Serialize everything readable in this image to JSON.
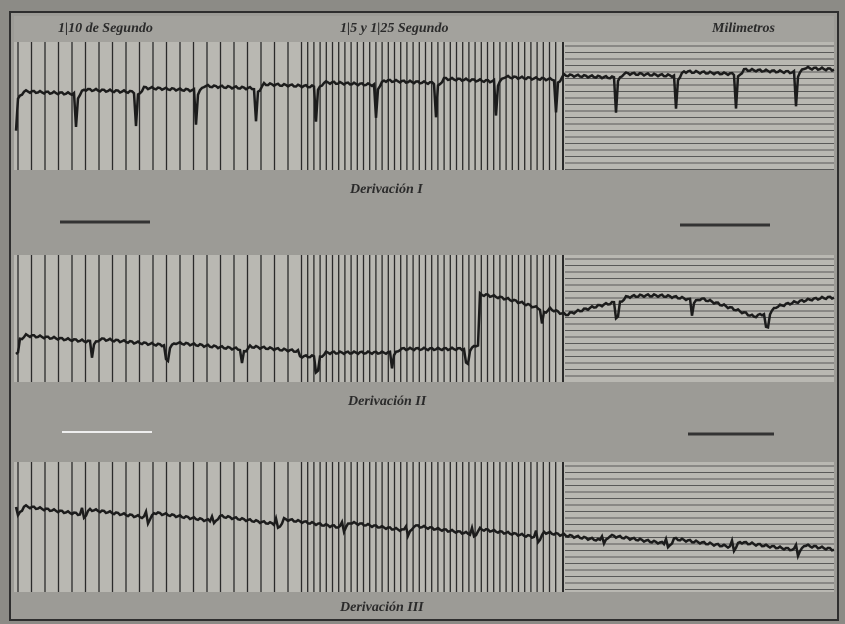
{
  "header": {
    "left": "1|10 de Segundo",
    "center": "1|5 y 1|25 Segundo",
    "right": "Milimetros"
  },
  "leads": [
    {
      "label": "Derivación I"
    },
    {
      "label": "Derivación II"
    },
    {
      "label": "Derivación III"
    }
  ]
}
